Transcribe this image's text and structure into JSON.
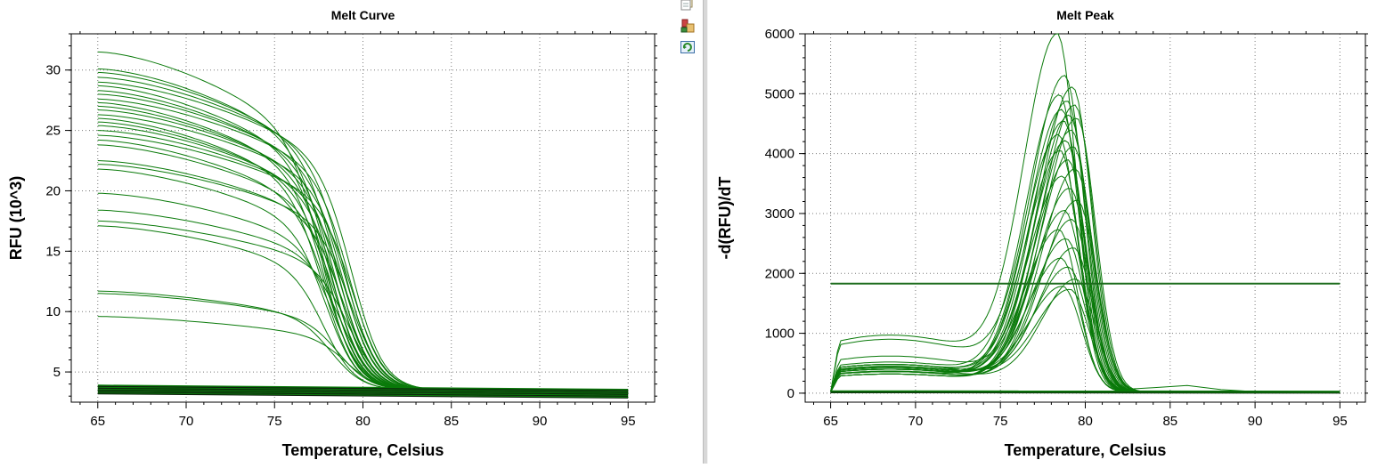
{
  "toolbar": {
    "buttons": [
      {
        "icon": "copy-icon",
        "label": "Copy"
      },
      {
        "icon": "export-icon",
        "label": "Export"
      },
      {
        "icon": "refresh-icon",
        "label": "Refresh"
      }
    ]
  },
  "colors": {
    "curve": "#0a7a0a",
    "baseline": "#0c1f0c",
    "grid": "#7a7a7a",
    "axis": "#000000",
    "background": "#ffffff"
  },
  "chart_data": [
    {
      "type": "line",
      "title": "Melt Curve",
      "xlabel": "Temperature, Celsius",
      "ylabel": "RFU (10^3)",
      "xlim": [
        63.5,
        96.5
      ],
      "ylim": [
        2.5,
        33
      ],
      "xticks": [
        65,
        70,
        75,
        80,
        85,
        90,
        95
      ],
      "yticks": [
        5,
        10,
        15,
        20,
        25,
        30
      ],
      "grid": true,
      "legend": "none",
      "series_count_approx": 96,
      "curve_family": {
        "start_values_at_65C": [
          31.5,
          30.1,
          29.8,
          29.4,
          29.0,
          28.7,
          28.3,
          28.0,
          27.6,
          27.3,
          27.0,
          26.7,
          26.3,
          26.0,
          25.7,
          25.4,
          25.0,
          24.6,
          24.2,
          23.8,
          22.5,
          22.2,
          21.8,
          19.8,
          18.4,
          17.5,
          17.1,
          11.7,
          11.5,
          9.6
        ],
        "melt_temp_range_C": [
          77.8,
          79.6
        ],
        "end_value_after_melt": 3.7,
        "baseline_band": [
          3.2,
          3.9
        ]
      },
      "reference_points": [
        {
          "T": 65,
          "RFU": 31.5
        },
        {
          "T": 75,
          "RFU": 24.5
        },
        {
          "T": 79,
          "RFU": 11.0
        },
        {
          "T": 82,
          "RFU": 3.8
        },
        {
          "T": 95,
          "RFU": 3.5
        }
      ]
    },
    {
      "type": "line",
      "title": "Melt Peak",
      "xlabel": "Temperature, Celsius",
      "ylabel": "-d(RFU)/dT",
      "xlim": [
        63.5,
        96.5
      ],
      "ylim": [
        -150,
        6000
      ],
      "xticks": [
        65,
        70,
        75,
        80,
        85,
        90,
        95
      ],
      "yticks": [
        0,
        1000,
        2000,
        3000,
        4000,
        5000,
        6000
      ],
      "grid": true,
      "legend": "none",
      "threshold": 1830,
      "series_count_approx": 96,
      "peak_family": {
        "peak_temperature_range_C": [
          78.4,
          79.6
        ],
        "peak_heights": [
          5700,
          5050,
          4950,
          4820,
          4750,
          4700,
          4620,
          4550,
          4480,
          4400,
          4300,
          4200,
          4100,
          4000,
          3900,
          3800,
          3650,
          3500,
          3300,
          3100,
          2950,
          2800,
          2600,
          2450,
          2300,
          2150,
          2000,
          1800,
          1650,
          1600
        ],
        "early_plateau_values": [
          950,
          880,
          600,
          500,
          430,
          400,
          350,
          300
        ],
        "baseline": 20
      },
      "reference_points": [
        {
          "T": 65,
          "value": 400
        },
        {
          "T": 75,
          "value": 900
        },
        {
          "T": 79,
          "value": 5700
        },
        {
          "T": 82,
          "value": 150
        },
        {
          "T": 95,
          "value": 20
        }
      ]
    }
  ]
}
